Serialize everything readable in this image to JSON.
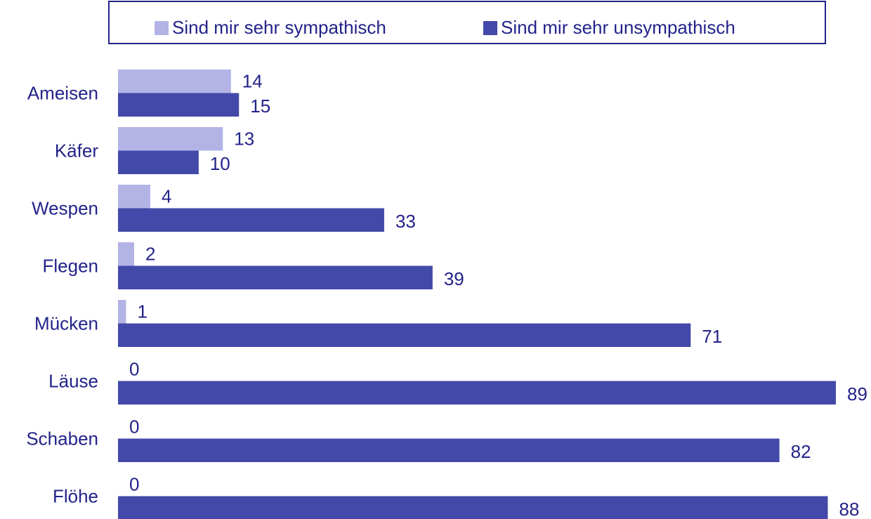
{
  "chart_data": {
    "type": "hbar",
    "categories": [
      "Ameisen",
      "Käfer",
      "Wespen",
      "Flegen",
      "Mücken",
      "Läuse",
      "Schaben",
      "Flöhe"
    ],
    "series": [
      {
        "name": "Sind mir sehr sympathisch",
        "color": "#b3b3e6",
        "values": [
          14,
          13,
          4,
          2,
          1,
          0,
          0,
          0
        ]
      },
      {
        "name": "Sind mir sehr unsympathisch",
        "color": "#4249a8",
        "values": [
          15,
          10,
          33,
          39,
          71,
          89,
          82,
          88
        ]
      }
    ],
    "legend": "top"
  }
}
